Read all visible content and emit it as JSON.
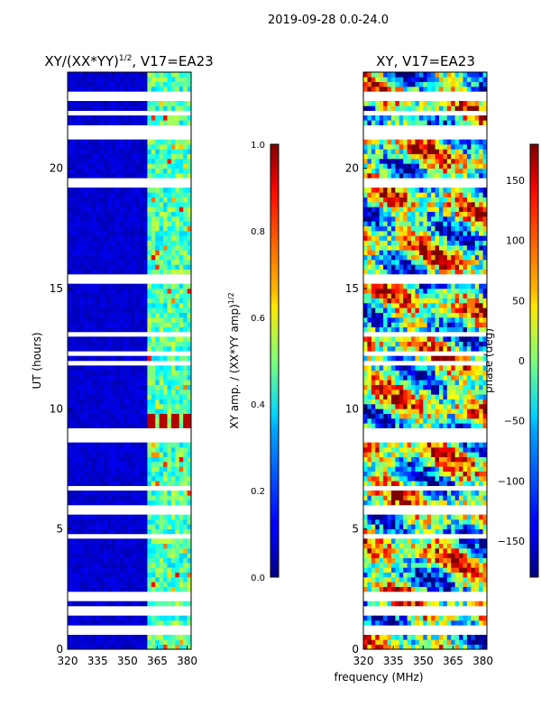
{
  "figure_title": "2019-09-28 0.0-24.0",
  "chart_data": [
    {
      "type": "heatmap",
      "title": "XY/(XX*YY)^{1/2}, V17=EA23",
      "title_main": "XY/(XX*YY)",
      "title_sup": "1/2",
      "title_tail": ", V17=EA23",
      "xlabel": "",
      "ylabel": "UT (hours)",
      "xlim": [
        320,
        382
      ],
      "ylim": [
        0,
        24
      ],
      "xticks": [
        320,
        335,
        350,
        365,
        380
      ],
      "yticks": [
        0,
        5,
        10,
        15,
        20
      ],
      "colorbar": {
        "label": "XY amp. / (XX*YY amp)^{1/2}",
        "label_main": "XY amp. / (XX*YY amp)",
        "label_sup": "1/2",
        "range": [
          0.0,
          1.0
        ],
        "ticks": [
          "0.0",
          "0.2",
          "0.4",
          "0.6",
          "0.8",
          "1.0"
        ]
      },
      "colormap": "jet",
      "features": {
        "active_band_mhz": [
          360,
          382
        ],
        "background_value": 0.05,
        "band_value": 0.4,
        "peak_value": 0.95,
        "peak_ut_hours": 9.4,
        "flagged_ut_hours": [
          0.8,
          1.6,
          2.2,
          4.7,
          5.8,
          6.7,
          8.7,
          9.0,
          11.9,
          12.3,
          13.1,
          15.3,
          15.5,
          19.4,
          21.4,
          21.7,
          22.3,
          23.0
        ]
      }
    },
    {
      "type": "heatmap",
      "title": "XY, V17=EA23",
      "xlabel": "frequency (MHz)",
      "ylabel": "",
      "xlim": [
        320,
        382
      ],
      "ylim": [
        0,
        24
      ],
      "xticks": [
        320,
        335,
        350,
        365,
        380
      ],
      "yticks": [
        0,
        5,
        10,
        15,
        20
      ],
      "colorbar": {
        "label": "phase (deg)",
        "range": [
          -180,
          180
        ],
        "ticks": [
          "150",
          "100",
          "50",
          "0",
          "−50",
          "−100",
          "−150"
        ],
        "tick_values": [
          150,
          100,
          50,
          0,
          -50,
          -100,
          -150
        ]
      },
      "colormap": "jet",
      "features": {
        "phase_range_deg": [
          -180,
          180
        ],
        "flagged_ut_hours": [
          0.8,
          1.6,
          2.2,
          4.7,
          5.8,
          6.7,
          8.7,
          9.0,
          11.9,
          12.3,
          13.1,
          15.3,
          15.5,
          19.4,
          21.4,
          21.7,
          22.3,
          23.0
        ]
      }
    }
  ]
}
